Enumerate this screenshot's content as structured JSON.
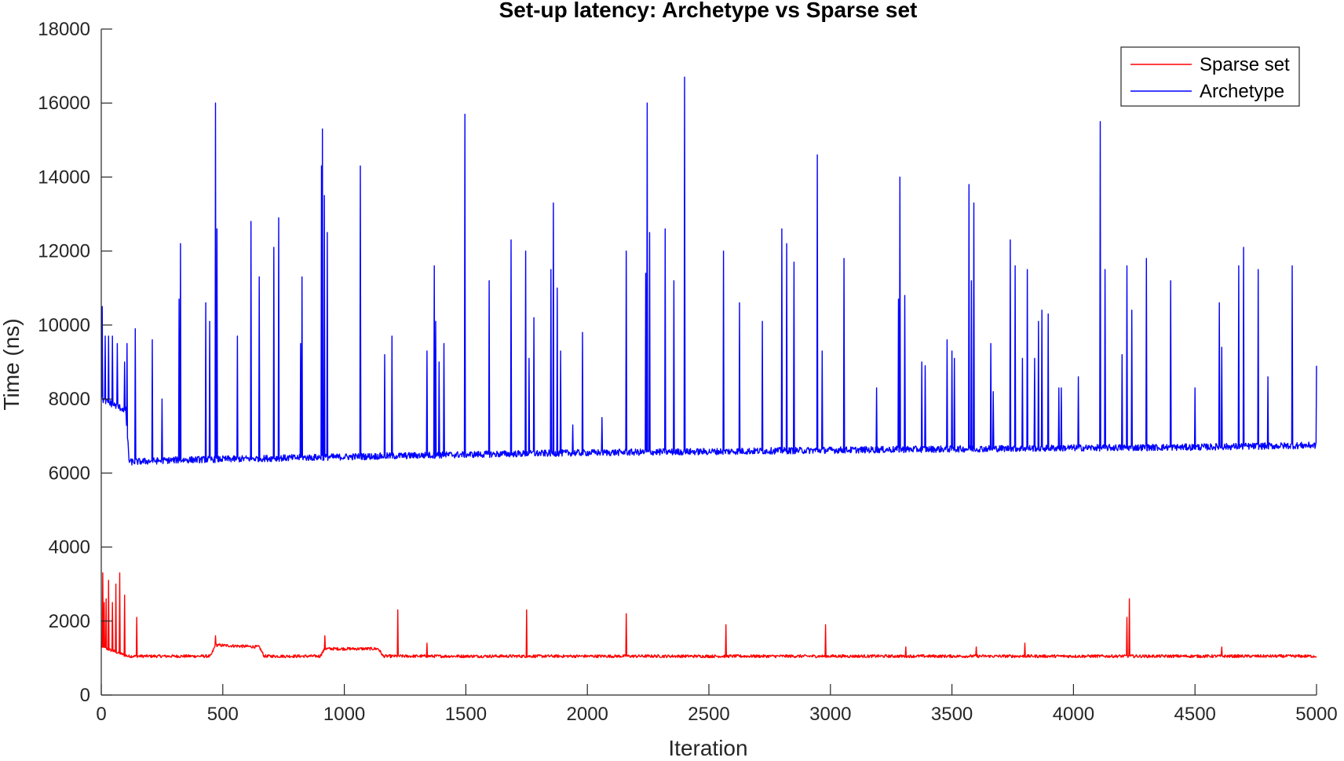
{
  "chart_data": {
    "type": "line",
    "title": "Set-up latency: Archetype vs Sparse set",
    "xlabel": "Iteration",
    "ylabel": "Time (ns)",
    "xlim": [
      0,
      5000
    ],
    "ylim": [
      0,
      18000
    ],
    "xticks": [
      0,
      500,
      1000,
      1500,
      2000,
      2500,
      3000,
      3500,
      4000,
      4500,
      5000
    ],
    "yticks": [
      0,
      2000,
      4000,
      6000,
      8000,
      10000,
      12000,
      14000,
      16000,
      18000
    ],
    "grid": false,
    "legend": {
      "position": "top-right",
      "entries": [
        "Sparse set",
        "Archetype"
      ]
    },
    "series": [
      {
        "name": "Sparse set",
        "color": "#ff0000",
        "baseline": [
          [
            0,
            1300
          ],
          [
            110,
            1050
          ],
          [
            450,
            1050
          ],
          [
            470,
            1350
          ],
          [
            650,
            1300
          ],
          [
            670,
            1050
          ],
          [
            900,
            1050
          ],
          [
            920,
            1250
          ],
          [
            1140,
            1250
          ],
          [
            1160,
            1050
          ],
          [
            5000,
            1050
          ]
        ],
        "spikes": [
          [
            5,
            3300
          ],
          [
            12,
            2500
          ],
          [
            20,
            2600
          ],
          [
            30,
            3100
          ],
          [
            45,
            2500
          ],
          [
            60,
            3000
          ],
          [
            75,
            3300
          ],
          [
            95,
            2700
          ],
          [
            145,
            2100
          ],
          [
            470,
            1600
          ],
          [
            920,
            1600
          ],
          [
            1220,
            2300
          ],
          [
            1340,
            1400
          ],
          [
            1750,
            2300
          ],
          [
            2160,
            2200
          ],
          [
            2570,
            1900
          ],
          [
            2980,
            1900
          ],
          [
            3310,
            1300
          ],
          [
            3600,
            1300
          ],
          [
            3800,
            1400
          ],
          [
            4220,
            2100
          ],
          [
            4230,
            2600
          ],
          [
            4610,
            1300
          ]
        ]
      },
      {
        "name": "Archetype",
        "color": "#0000ff",
        "baseline": [
          [
            0,
            8000
          ],
          [
            100,
            7700
          ],
          [
            115,
            6300
          ],
          [
            300,
            6350
          ],
          [
            700,
            6400
          ],
          [
            1100,
            6450
          ],
          [
            1500,
            6500
          ],
          [
            2000,
            6550
          ],
          [
            2500,
            6580
          ],
          [
            3000,
            6620
          ],
          [
            3500,
            6650
          ],
          [
            4000,
            6680
          ],
          [
            4500,
            6700
          ],
          [
            5000,
            6750
          ]
        ],
        "spikes": [
          [
            3,
            10500
          ],
          [
            15,
            9700
          ],
          [
            30,
            9700
          ],
          [
            45,
            9700
          ],
          [
            65,
            9500
          ],
          [
            95,
            9000
          ],
          [
            105,
            9500
          ],
          [
            140,
            9900
          ],
          [
            210,
            9600
          ],
          [
            250,
            8000
          ],
          [
            320,
            10700
          ],
          [
            325,
            12200
          ],
          [
            430,
            10600
          ],
          [
            445,
            10100
          ],
          [
            470,
            16000
          ],
          [
            475,
            12600
          ],
          [
            615,
            12800
          ],
          [
            650,
            11300
          ],
          [
            560,
            9700
          ],
          [
            710,
            12100
          ],
          [
            730,
            12900
          ],
          [
            820,
            9500
          ],
          [
            825,
            11300
          ],
          [
            905,
            14300
          ],
          [
            910,
            15300
          ],
          [
            918,
            13500
          ],
          [
            930,
            12500
          ],
          [
            1065,
            14300
          ],
          [
            1165,
            9200
          ],
          [
            1195,
            9700
          ],
          [
            1340,
            9300
          ],
          [
            1370,
            11600
          ],
          [
            1375,
            10100
          ],
          [
            1390,
            9000
          ],
          [
            1410,
            9500
          ],
          [
            1495,
            15700
          ],
          [
            1595,
            11200
          ],
          [
            1685,
            12300
          ],
          [
            1745,
            12000
          ],
          [
            1760,
            9100
          ],
          [
            1780,
            10200
          ],
          [
            1850,
            11500
          ],
          [
            1860,
            13300
          ],
          [
            1875,
            11000
          ],
          [
            1890,
            9300
          ],
          [
            1940,
            7300
          ],
          [
            1980,
            9800
          ],
          [
            2060,
            7500
          ],
          [
            2160,
            12000
          ],
          [
            2240,
            11400
          ],
          [
            2245,
            16000
          ],
          [
            2255,
            12500
          ],
          [
            2320,
            12600
          ],
          [
            2355,
            11200
          ],
          [
            2400,
            16700
          ],
          [
            2560,
            12000
          ],
          [
            2625,
            10600
          ],
          [
            2720,
            10100
          ],
          [
            2800,
            12600
          ],
          [
            2820,
            12200
          ],
          [
            2850,
            11700
          ],
          [
            2945,
            14600
          ],
          [
            2965,
            9300
          ],
          [
            3055,
            11800
          ],
          [
            3190,
            8300
          ],
          [
            3280,
            10700
          ],
          [
            3285,
            14000
          ],
          [
            3305,
            10800
          ],
          [
            3375,
            9000
          ],
          [
            3390,
            8900
          ],
          [
            3480,
            9600
          ],
          [
            3500,
            9300
          ],
          [
            3510,
            9100
          ],
          [
            3570,
            13800
          ],
          [
            3580,
            11200
          ],
          [
            3590,
            13300
          ],
          [
            3660,
            9500
          ],
          [
            3670,
            8200
          ],
          [
            3740,
            12300
          ],
          [
            3760,
            11600
          ],
          [
            3790,
            9100
          ],
          [
            3810,
            11500
          ],
          [
            3840,
            9100
          ],
          [
            3855,
            10100
          ],
          [
            3870,
            10400
          ],
          [
            3895,
            10300
          ],
          [
            3940,
            8300
          ],
          [
            3950,
            8300
          ],
          [
            4020,
            8600
          ],
          [
            4110,
            15500
          ],
          [
            4130,
            11500
          ],
          [
            4200,
            9200
          ],
          [
            4220,
            11600
          ],
          [
            4240,
            10400
          ],
          [
            4300,
            11800
          ],
          [
            4400,
            11200
          ],
          [
            4500,
            8300
          ],
          [
            4600,
            10600
          ],
          [
            4610,
            9400
          ],
          [
            4680,
            11600
          ],
          [
            4700,
            12100
          ],
          [
            4760,
            11500
          ],
          [
            4800,
            8600
          ],
          [
            4900,
            11600
          ],
          [
            5000,
            8900
          ]
        ]
      }
    ]
  }
}
